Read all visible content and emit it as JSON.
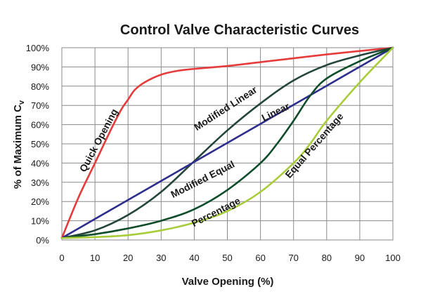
{
  "chart_data": {
    "type": "line",
    "title": "Control Valve Characteristic Curves",
    "xlabel": "Valve Opening (%)",
    "ylabel": "% of Maximum C",
    "ylabel_subscript": "v",
    "xlim": [
      0,
      100
    ],
    "ylim": [
      0,
      100
    ],
    "grid": true,
    "x_ticks": [
      0,
      10,
      20,
      30,
      40,
      50,
      60,
      70,
      80,
      90,
      100
    ],
    "y_ticks": [
      0,
      10,
      20,
      30,
      40,
      50,
      60,
      70,
      80,
      90,
      100
    ],
    "x_tick_labels": [
      "0",
      "10",
      "20",
      "30",
      "40",
      "50",
      "60",
      "70",
      "80",
      "90",
      "100"
    ],
    "y_tick_labels": [
      "0%",
      "10%",
      "20%",
      "30%",
      "40%",
      "50%",
      "60%",
      "70%",
      "80%",
      "90%",
      "100%"
    ],
    "series": [
      {
        "name": "Quick Opening",
        "color": "#e53b3b",
        "x": [
          0,
          5,
          10,
          15,
          18,
          20,
          22,
          25,
          30,
          35,
          40,
          50,
          60,
          70,
          80,
          90,
          100
        ],
        "y": [
          1,
          22,
          40,
          58,
          68,
          73,
          78,
          82,
          86,
          88,
          89,
          90.5,
          92.5,
          94.5,
          96.5,
          98.3,
          100
        ]
      },
      {
        "name": "Modified Linear",
        "color": "#24453a",
        "x": [
          0,
          10,
          20,
          30,
          40,
          50,
          60,
          70,
          80,
          90,
          100
        ],
        "y": [
          1,
          5,
          13,
          25,
          41,
          57,
          71,
          83,
          91,
          96,
          100
        ]
      },
      {
        "name": "Linear",
        "color": "#2d2d8c",
        "x": [
          0,
          100
        ],
        "y": [
          1,
          100
        ]
      },
      {
        "name": "Modified Equal Percentage",
        "color": "#0f4d2a",
        "x": [
          0,
          10,
          20,
          30,
          40,
          50,
          60,
          65,
          70,
          75,
          80,
          90,
          100
        ],
        "y": [
          1,
          3,
          6,
          10,
          16,
          26,
          40,
          50,
          62,
          75,
          84,
          93,
          100
        ]
      },
      {
        "name": "Equal Percentage",
        "color": "#a8cc3a",
        "x": [
          0,
          10,
          20,
          30,
          40,
          50,
          60,
          70,
          75,
          80,
          90,
          100
        ],
        "y": [
          1,
          1.5,
          2.5,
          5,
          9,
          15,
          25,
          40,
          50,
          62,
          82,
          100
        ]
      }
    ],
    "curve_labels": [
      {
        "text": "Quick Opening",
        "x": 12,
        "y": 51,
        "angle": -62,
        "color": "#1a1a1a"
      },
      {
        "text": "Modified Linear",
        "x": 50,
        "y": 67,
        "angle": -33,
        "color": "#1a1a1a"
      },
      {
        "text": "Linear",
        "x": 65,
        "y": 65,
        "angle": -26,
        "color": "#1a1a1a"
      },
      {
        "text": "Modified Equal",
        "x": 43,
        "y": 30,
        "angle": -27,
        "color": "#1a1a1a"
      },
      {
        "text": "Percentage",
        "x": 47,
        "y": 13,
        "angle": -27,
        "color": "#1a1a1a"
      },
      {
        "text": "Equal Percentage",
        "x": 77,
        "y": 48,
        "angle": -49,
        "color": "#1a1a1a"
      }
    ]
  }
}
